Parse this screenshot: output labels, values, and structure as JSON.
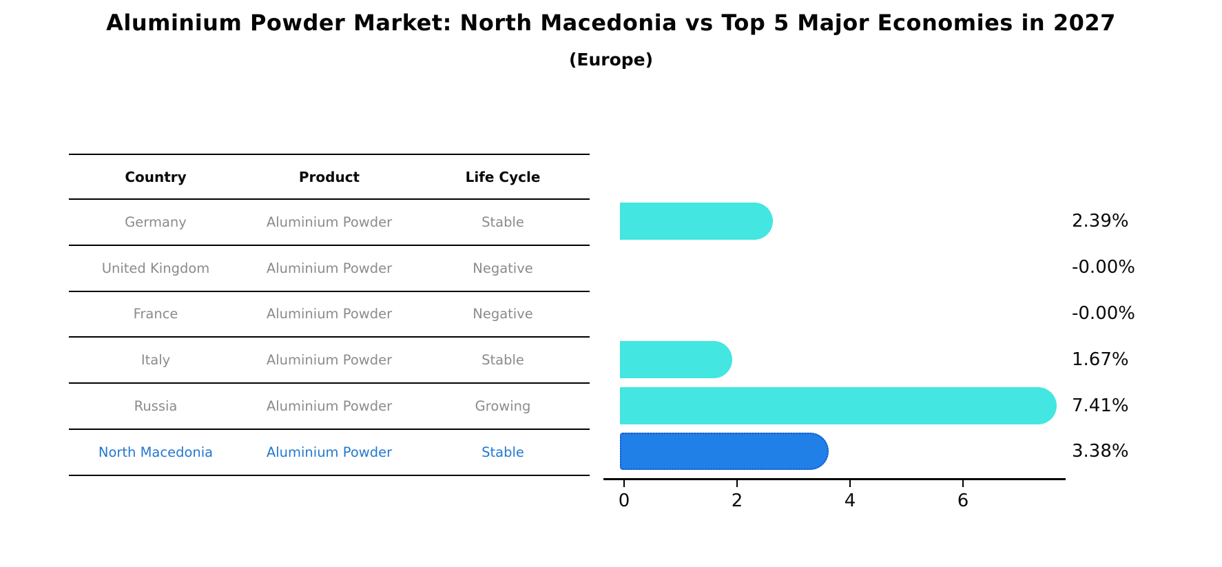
{
  "title": "Aluminium Powder Market: North Macedonia vs Top 5 Major Economies in 2027",
  "subtitle": "(Europe)",
  "table": {
    "headers": {
      "country": "Country",
      "product": "Product",
      "life_cycle": "Life Cycle"
    },
    "rows": [
      {
        "country": "Germany",
        "product": "Aluminium Powder",
        "life_cycle": "Stable"
      },
      {
        "country": "United Kingdom",
        "product": "Aluminium Powder",
        "life_cycle": "Negative"
      },
      {
        "country": "France",
        "product": "Aluminium Powder",
        "life_cycle": "Negative"
      },
      {
        "country": "Italy",
        "product": "Aluminium Powder",
        "life_cycle": "Stable"
      },
      {
        "country": "Russia",
        "product": "Aluminium Powder",
        "life_cycle": "Growing"
      },
      {
        "country": "North Macedonia",
        "product": "Aluminium Powder",
        "life_cycle": "Stable"
      }
    ]
  },
  "chart_data": {
    "type": "bar",
    "orientation": "horizontal",
    "categories": [
      "Germany",
      "United Kingdom",
      "France",
      "Italy",
      "Russia",
      "North Macedonia"
    ],
    "values": [
      2.39,
      -0.0,
      -0.0,
      1.67,
      7.41,
      3.38
    ],
    "value_labels": [
      "2.39%",
      "-0.00%",
      "-0.00%",
      "1.67%",
      "7.41%",
      "3.38%"
    ],
    "xticks": [
      "0",
      "2",
      "4",
      "6"
    ],
    "xtick_values": [
      0,
      2,
      4,
      6
    ],
    "xlim": [
      0,
      7.8
    ],
    "grid": false,
    "legend": "none",
    "bar_color": "#43e6e0",
    "highlight_color": "#2080e8",
    "highlight_edge_color": "#1456c8",
    "highlight_index": 5,
    "highlight_text_color": "#2378cf"
  }
}
